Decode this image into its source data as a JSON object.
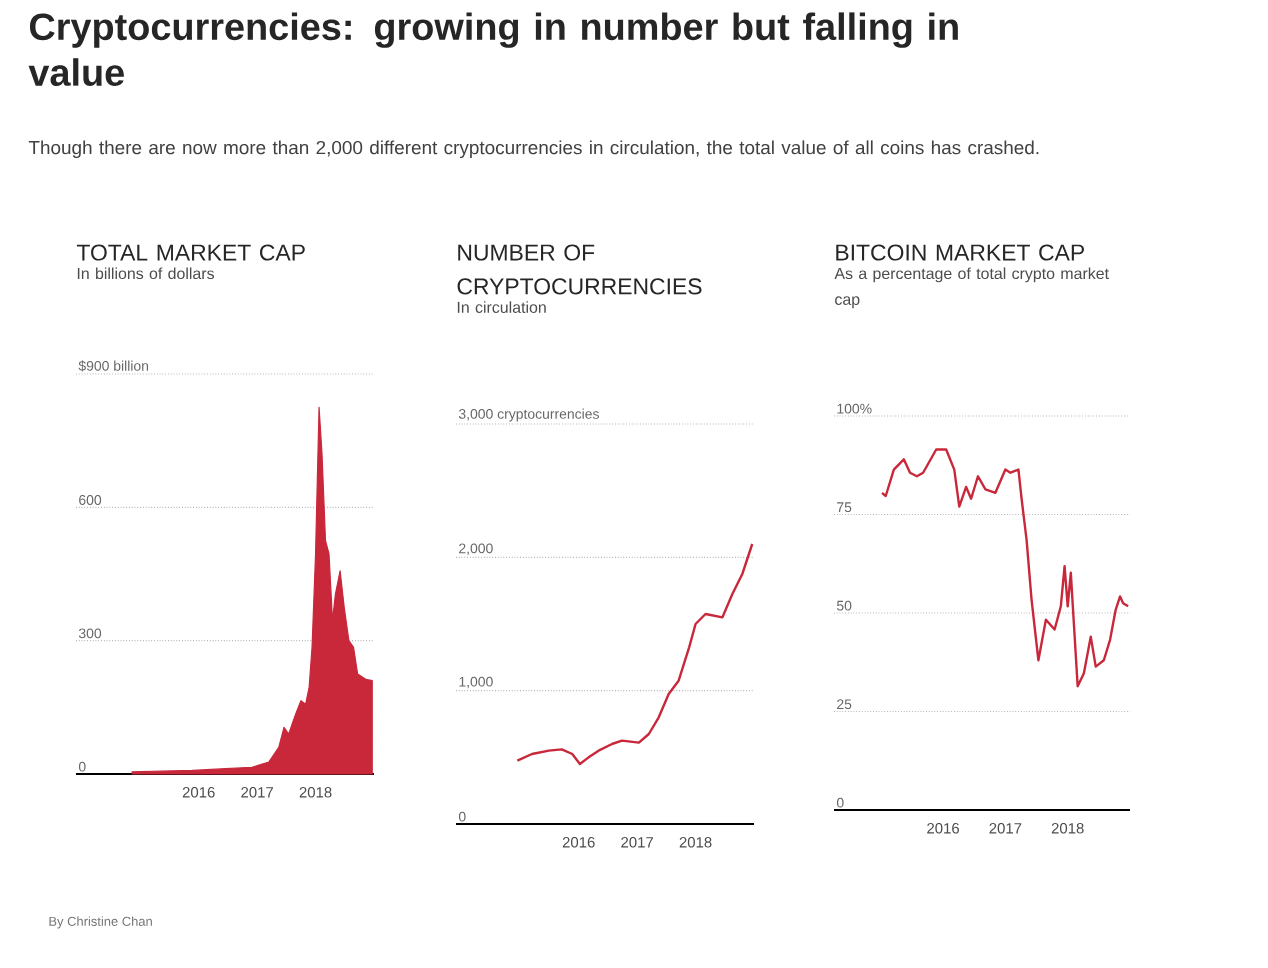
{
  "chart_data": [
    {
      "type": "other",
      "title": "Cryptocurrencies: growing in number but falling in value",
      "subtitle": "Though there are now more than 2,000 different cryptocurrencies in circulation, the total value of all coins has crashed.",
      "annotations": [
        "By Christine Chan"
      ]
    },
    {
      "type": "area",
      "title": "TOTAL MARKET CAP",
      "subtitle": "In billions of dollars",
      "color": "#c8283a",
      "grid": "y",
      "xlim": [
        2013.9,
        2019.0
      ],
      "xticks": [
        2016,
        2017,
        2018
      ],
      "ylim": [
        0,
        900
      ],
      "yticks": [
        0,
        300,
        600,
        {
          "value": 900,
          "label": "$900 billion"
        }
      ],
      "x": [
        2014.86,
        2015.89,
        2016.46,
        2016.91,
        2017.2,
        2017.37,
        2017.46,
        2017.54,
        2017.66,
        2017.75,
        2017.83,
        2017.89,
        2017.94,
        2018.0,
        2018.06,
        2018.11,
        2018.17,
        2018.23,
        2018.29,
        2018.34,
        2018.42,
        2018.49,
        2018.57,
        2018.65,
        2018.72,
        2018.86,
        2018.97
      ],
      "values": [
        5,
        8,
        12,
        15,
        27,
        60,
        105,
        90,
        135,
        165,
        157,
        195,
        285,
        495,
        825,
        720,
        525,
        495,
        345,
        405,
        457,
        375,
        300,
        285,
        225,
        213,
        210
      ]
    },
    {
      "type": "line",
      "title": "NUMBER OF CRYPTOCURRENCIES",
      "subtitle": "In circulation",
      "color": "#c8283a",
      "grid": "y",
      "xlim": [
        2013.9,
        2019.0
      ],
      "xticks": [
        2016,
        2017,
        2018
      ],
      "ylim": [
        0,
        3000
      ],
      "yticks": [
        0,
        {
          "value": 1000,
          "label": "1,000"
        },
        {
          "value": 2000,
          "label": "2,000"
        },
        {
          "value": 3000,
          "label": "3,000 cryptocurrencies"
        }
      ],
      "x": [
        2014.95,
        2015.2,
        2015.49,
        2015.71,
        2015.89,
        2016.02,
        2016.17,
        2016.34,
        2016.57,
        2016.74,
        2017.03,
        2017.2,
        2017.37,
        2017.54,
        2017.71,
        2017.89,
        2018.0,
        2018.17,
        2018.46,
        2018.63,
        2018.8,
        2018.97
      ],
      "values": [
        475,
        525,
        550,
        560,
        525,
        450,
        500,
        550,
        600,
        625,
        610,
        675,
        800,
        975,
        1075,
        1325,
        1500,
        1575,
        1550,
        1725,
        1875,
        2100
      ]
    },
    {
      "type": "line",
      "title": "BITCOIN MARKET CAP",
      "subtitle": "As a percentage of total crypto market cap",
      "color": "#c8283a",
      "grid": "y",
      "xlim": [
        2014.25,
        2019.0
      ],
      "xticks": [
        2016,
        2017,
        2018
      ],
      "ylim": [
        0,
        100
      ],
      "yticks": [
        0,
        25,
        50,
        75,
        {
          "value": 100,
          "label": "100%"
        }
      ],
      "x": [
        2015.02,
        2015.08,
        2015.21,
        2015.37,
        2015.47,
        2015.58,
        2015.68,
        2015.89,
        2016.05,
        2016.18,
        2016.26,
        2016.37,
        2016.45,
        2016.56,
        2016.68,
        2016.84,
        2017.0,
        2017.08,
        2017.21,
        2017.26,
        2017.34,
        2017.42,
        2017.53,
        2017.65,
        2017.79,
        2017.89,
        2017.95,
        2018.0,
        2018.05,
        2018.16,
        2018.26,
        2018.37,
        2018.45,
        2018.58,
        2018.68,
        2018.77,
        2018.84,
        2018.89,
        2018.97
      ],
      "values": [
        80.5,
        79.7,
        86.4,
        89,
        85.6,
        84.7,
        85.6,
        91.5,
        91.5,
        86.4,
        77,
        82,
        79,
        84.7,
        81.4,
        80.5,
        86.4,
        85.6,
        86.4,
        79,
        68.6,
        53.4,
        38,
        48.3,
        45.8,
        51.7,
        61.9,
        51.7,
        60.2,
        31.4,
        34.7,
        44,
        36.4,
        38,
        43.2,
        50.8,
        54.2,
        52.5,
        51.7
      ]
    }
  ]
}
